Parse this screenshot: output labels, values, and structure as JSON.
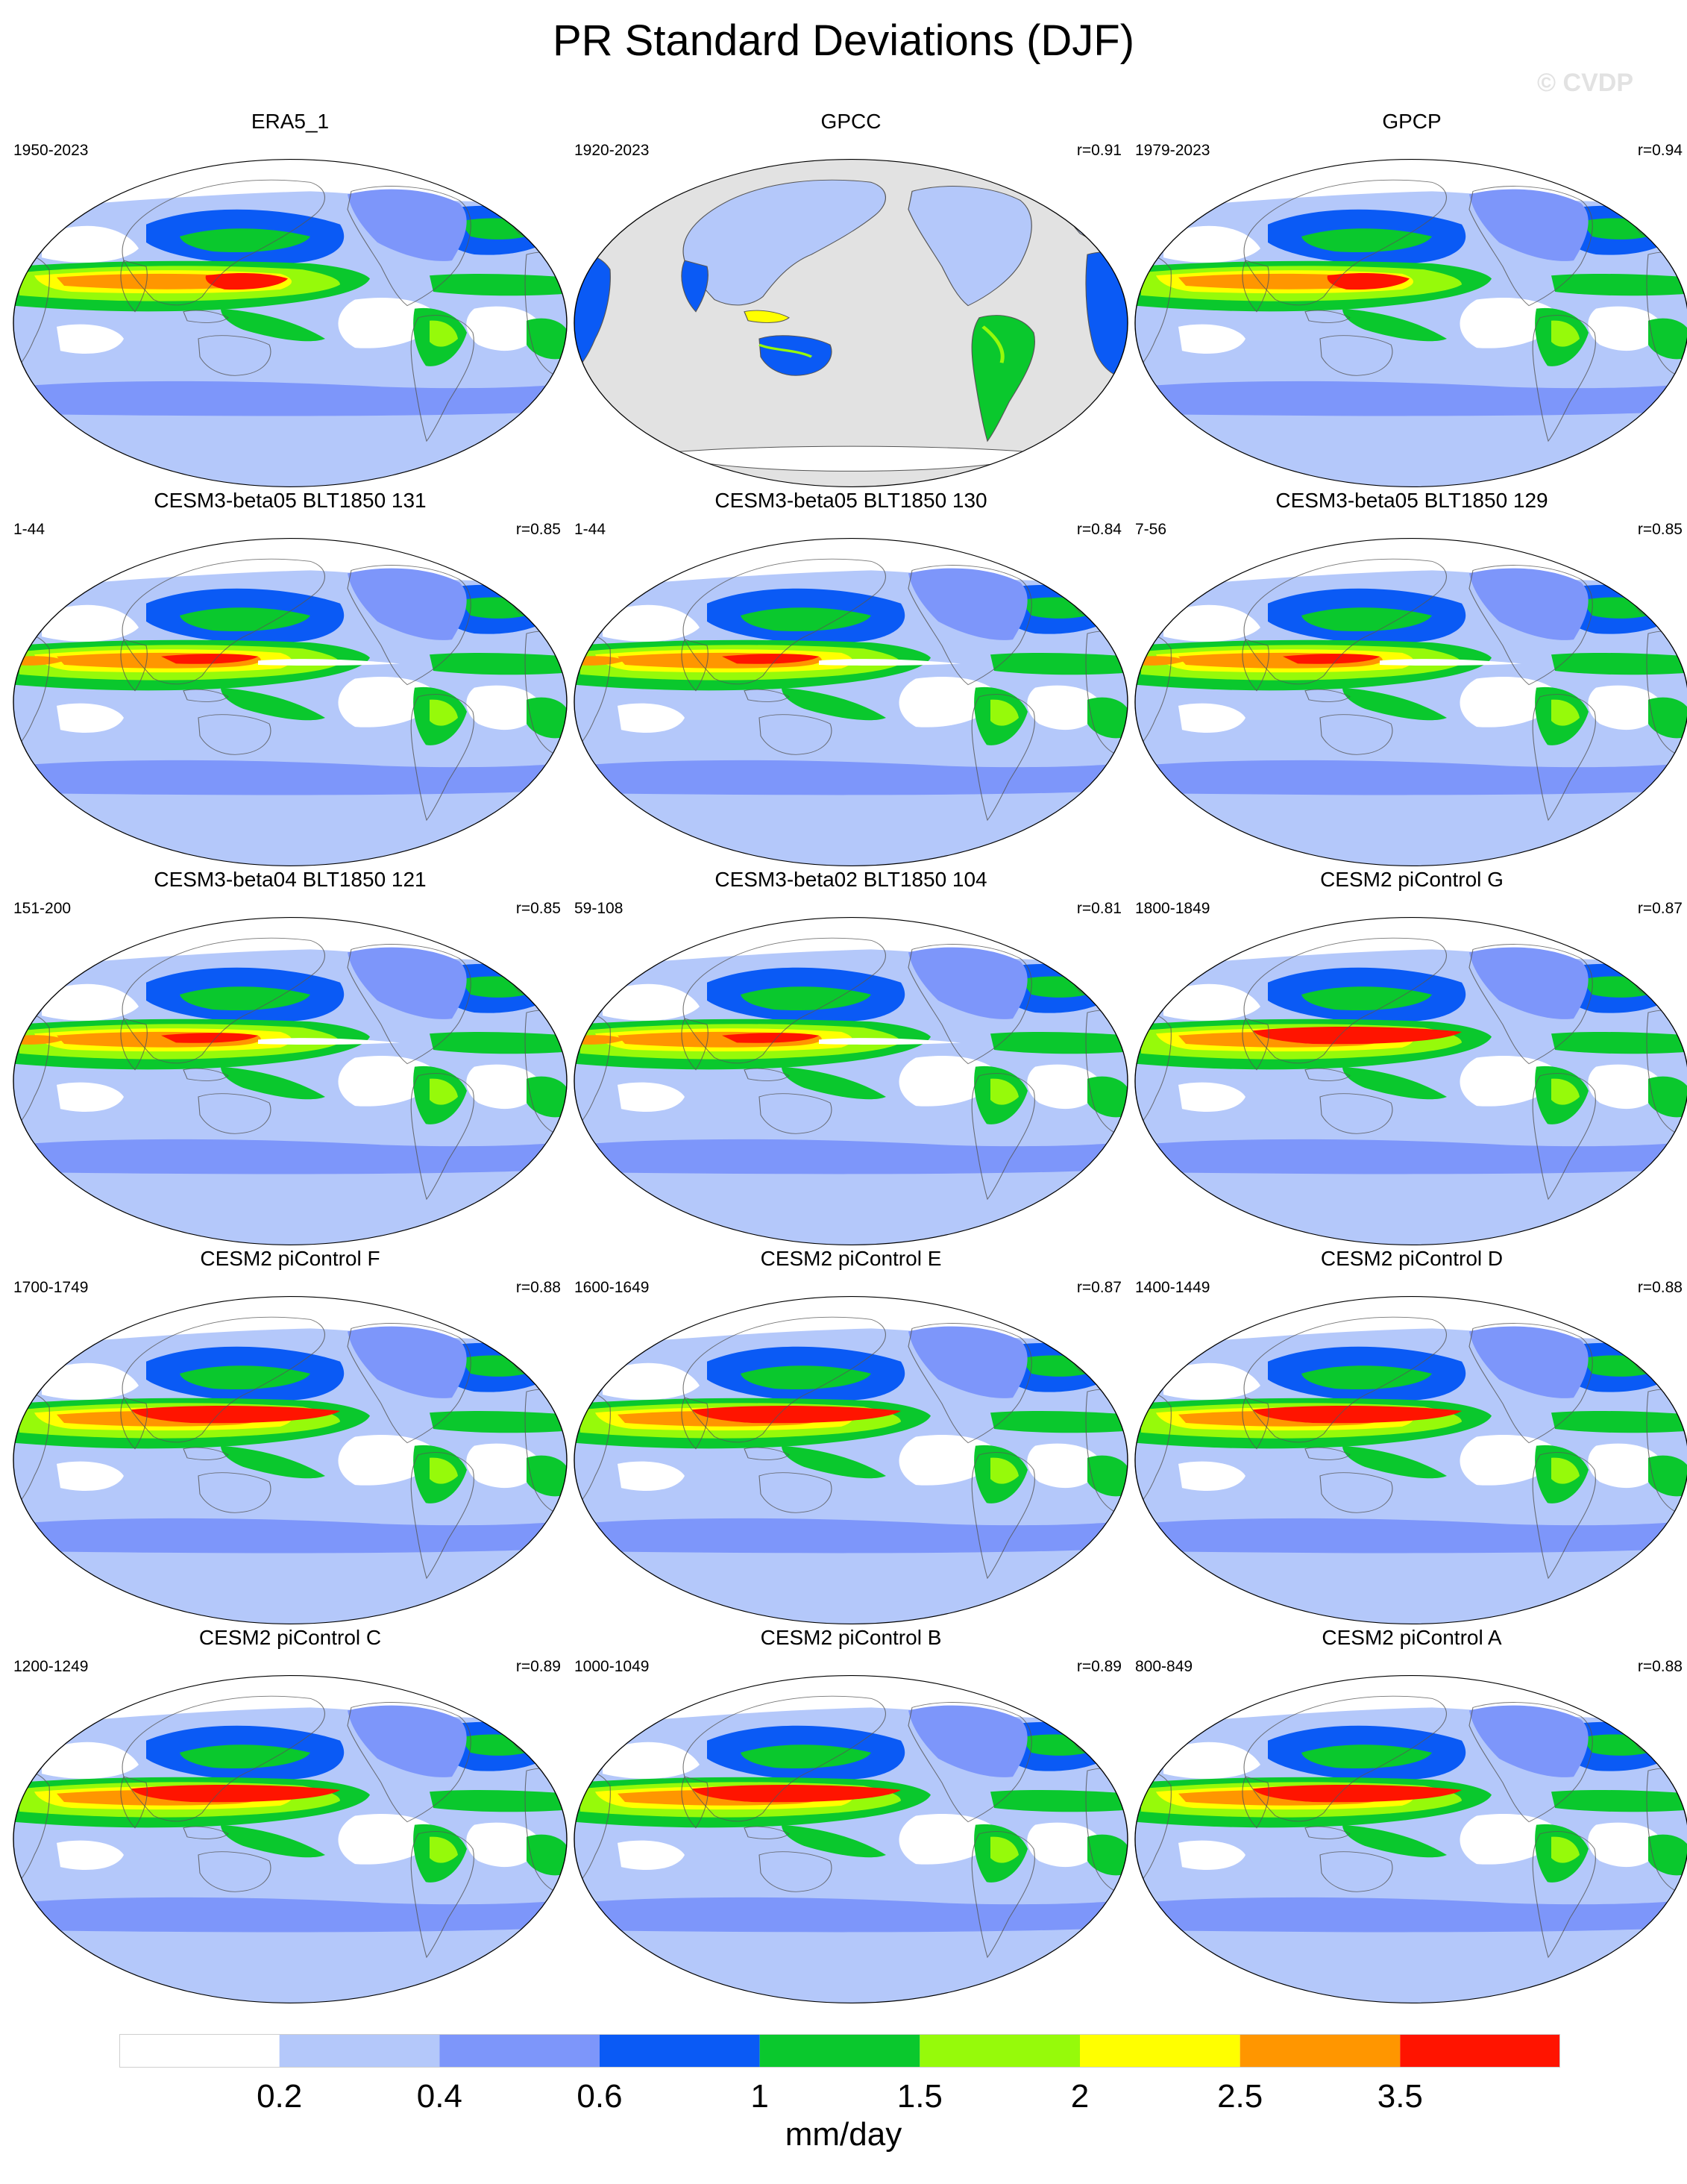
{
  "title": "PR Standard Deviations (DJF)",
  "watermark": "© CVDP",
  "panels": [
    {
      "name": "ERA5_1",
      "left": "1950-2023",
      "right": "",
      "land_only": false,
      "style": "obs"
    },
    {
      "name": "GPCC",
      "left": "1920-2023",
      "right": "r=0.91",
      "land_only": true,
      "style": "obs"
    },
    {
      "name": "GPCP",
      "left": "1979-2023",
      "right": "r=0.94",
      "land_only": false,
      "style": "obs"
    },
    {
      "name": "CESM3-beta05 BLT1850 131",
      "left": "1-44",
      "right": "r=0.85",
      "land_only": false,
      "style": "model"
    },
    {
      "name": "CESM3-beta05 BLT1850 130",
      "left": "1-44",
      "right": "r=0.84",
      "land_only": false,
      "style": "model"
    },
    {
      "name": "CESM3-beta05 BLT1850 129",
      "left": "7-56",
      "right": "r=0.85",
      "land_only": false,
      "style": "model"
    },
    {
      "name": "CESM3-beta04 BLT1850 121",
      "left": "151-200",
      "right": "r=0.85",
      "land_only": false,
      "style": "model"
    },
    {
      "name": "CESM3-beta02 BLT1850 104",
      "left": "59-108",
      "right": "r=0.81",
      "land_only": false,
      "style": "model"
    },
    {
      "name": "CESM2 piControl G",
      "left": "1800-1849",
      "right": "r=0.87",
      "land_only": false,
      "style": "cesm2"
    },
    {
      "name": "CESM2 piControl F",
      "left": "1700-1749",
      "right": "r=0.88",
      "land_only": false,
      "style": "cesm2"
    },
    {
      "name": "CESM2 piControl E",
      "left": "1600-1649",
      "right": "r=0.87",
      "land_only": false,
      "style": "cesm2"
    },
    {
      "name": "CESM2 piControl D",
      "left": "1400-1449",
      "right": "r=0.88",
      "land_only": false,
      "style": "cesm2"
    },
    {
      "name": "CESM2 piControl C",
      "left": "1200-1249",
      "right": "r=0.89",
      "land_only": false,
      "style": "cesm2"
    },
    {
      "name": "CESM2 piControl B",
      "left": "1000-1049",
      "right": "r=0.89",
      "land_only": false,
      "style": "cesm2"
    },
    {
      "name": "CESM2 piControl A",
      "left": "800-849",
      "right": "r=0.88",
      "land_only": false,
      "style": "cesm2"
    }
  ],
  "colorbar": {
    "colors": [
      "#ffffff",
      "#b4c8fa",
      "#7d96fa",
      "#0a5af5",
      "#0ac82d",
      "#96fa0a",
      "#ffff00",
      "#ff9600",
      "#ff1400"
    ],
    "labels": [
      "0.2",
      "0.4",
      "0.6",
      "1",
      "1.5",
      "2",
      "2.5",
      "3.5"
    ],
    "unit": "mm/day"
  },
  "land_fill_color": "#e2e2e2"
}
